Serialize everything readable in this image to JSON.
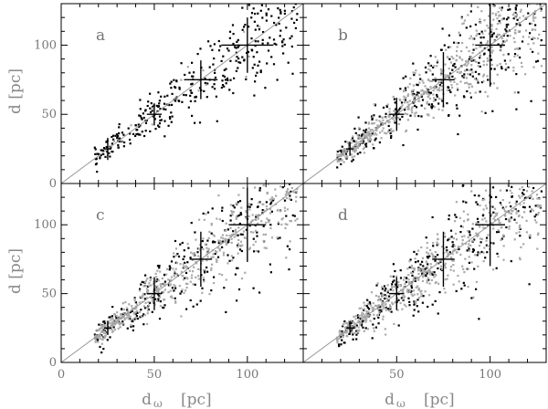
{
  "figure": {
    "xlabel_main": "d",
    "xlabel_sub": "ω",
    "xlabel_unit": "[pc]",
    "ylabel": "d [pc]"
  },
  "chart_data": [
    {
      "type": "scatter",
      "panel": "a",
      "xlim": [
        0,
        130
      ],
      "ylim": [
        0,
        130
      ],
      "xticks": [],
      "yticks": [
        "50",
        "100"
      ],
      "diagonal": true,
      "errorbars": [
        {
          "x": 25,
          "y": 25,
          "xerr": 2,
          "yerr": 8
        },
        {
          "x": 50,
          "y": 50,
          "xerr": 4,
          "yerr": 8
        },
        {
          "x": 75,
          "y": 75,
          "xerr": 9,
          "yerr": 14
        },
        {
          "x": 100,
          "y": 100,
          "xerr": 14,
          "yerr": 20
        }
      ],
      "series": [
        {
          "color": "#000000",
          "n": 360,
          "min": 18,
          "max": 127,
          "scatter_frac": 0.16
        },
        {
          "color": "#aaaaaa",
          "n": 15,
          "min": 20,
          "max": 120,
          "scatter_frac": 0.18
        }
      ]
    },
    {
      "type": "scatter",
      "panel": "b",
      "xlim": [
        0,
        130
      ],
      "ylim": [
        0,
        130
      ],
      "xticks": [],
      "yticks": [],
      "diagonal": true,
      "errorbars": [
        {
          "x": 25,
          "y": 25,
          "xerr": 2,
          "yerr": 5
        },
        {
          "x": 50,
          "y": 50,
          "xerr": 4,
          "yerr": 12
        },
        {
          "x": 75,
          "y": 75,
          "xerr": 6,
          "yerr": 20
        },
        {
          "x": 100,
          "y": 100,
          "xerr": 8,
          "yerr": 30
        }
      ],
      "series": [
        {
          "color": "#000000",
          "n": 330,
          "min": 18,
          "max": 128,
          "scatter_frac": 0.2
        },
        {
          "color": "#aaaaaa",
          "n": 520,
          "min": 18,
          "max": 128,
          "scatter_frac": 0.16
        }
      ]
    },
    {
      "type": "scatter",
      "panel": "c",
      "xlim": [
        0,
        130
      ],
      "ylim": [
        0,
        130
      ],
      "xticks": [
        "0",
        "50",
        "100"
      ],
      "yticks": [
        "50",
        "100"
      ],
      "diagonal": true,
      "errorbars": [
        {
          "x": 25,
          "y": 25,
          "xerr": 2,
          "yerr": 5
        },
        {
          "x": 50,
          "y": 50,
          "xerr": 4,
          "yerr": 12
        },
        {
          "x": 75,
          "y": 75,
          "xerr": 6,
          "yerr": 20
        },
        {
          "x": 100,
          "y": 100,
          "xerr": 10,
          "yerr": 27
        }
      ],
      "series": [
        {
          "color": "#000000",
          "n": 300,
          "min": 18,
          "max": 128,
          "scatter_frac": 0.2
        },
        {
          "color": "#aaaaaa",
          "n": 520,
          "min": 18,
          "max": 128,
          "scatter_frac": 0.16
        }
      ]
    },
    {
      "type": "scatter",
      "panel": "d",
      "xlim": [
        0,
        130
      ],
      "ylim": [
        0,
        130
      ],
      "xticks": [
        "50",
        "100"
      ],
      "yticks": [],
      "diagonal": true,
      "errorbars": [
        {
          "x": 25,
          "y": 25,
          "xerr": 2,
          "yerr": 5
        },
        {
          "x": 50,
          "y": 50,
          "xerr": 4,
          "yerr": 12
        },
        {
          "x": 75,
          "y": 75,
          "xerr": 6,
          "yerr": 20
        },
        {
          "x": 100,
          "y": 100,
          "xerr": 8,
          "yerr": 30
        }
      ],
      "series": [
        {
          "color": "#000000",
          "n": 320,
          "min": 18,
          "max": 128,
          "scatter_frac": 0.2
        },
        {
          "color": "#aaaaaa",
          "n": 520,
          "min": 18,
          "max": 128,
          "scatter_frac": 0.16
        }
      ]
    }
  ]
}
